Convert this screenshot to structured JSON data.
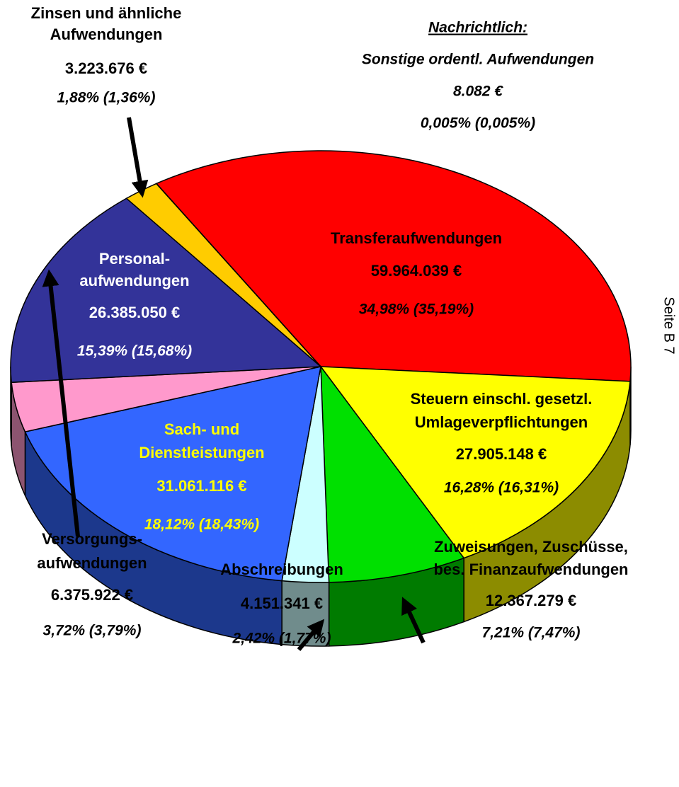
{
  "chart_data": {
    "type": "pie",
    "categories": [
      [
        "Transferaufwendungen"
      ],
      [
        "Steuern einschl. gesetzl.",
        "Umlageverpflichtungen"
      ],
      [
        "Zuweisungen, Zuschüsse,",
        "bes. Finanzaufwendungen"
      ],
      [
        "Abschreibungen"
      ],
      [
        "Sach- und",
        "Dienstleistungen"
      ],
      [
        "Versorgungs-",
        "aufwendungen"
      ],
      [
        "Personal-",
        "aufwendungen"
      ],
      [
        "Zinsen und ähnliche",
        "Aufwendungen"
      ],
      [
        "Sonstige ordentl. Aufwendungen"
      ]
    ],
    "values": [
      59964039,
      27905148,
      12367279,
      4151341,
      31061116,
      6375922,
      26385050,
      3223676,
      8082
    ],
    "value_labels": [
      "59.964.039 €",
      "27.905.148 €",
      "12.367.279 €",
      "4.151.341 €",
      "31.061.116 €",
      "6.375.922 €",
      "26.385.050 €",
      "3.223.676 €",
      "8.082 €"
    ],
    "share_labels": [
      "34,98% (35,19%)",
      "16,28% (16,31%)",
      "7,21% (7,47%)",
      "2,42% (1,77%)",
      "18,12% (18,43%)",
      "3,72% (3,79%)",
      "15,39% (15,68%)",
      "1,88% (1,36%)",
      "0,005% (0,005%)"
    ],
    "colors": [
      "#ff0000",
      "#ffff00",
      "#00e000",
      "#ccffff",
      "#3366ff",
      "#ff99cc",
      "#333399",
      "#ffcc00",
      "#808080"
    ],
    "note_title": "Nachrichtlich:",
    "page_label": "Seite B 7"
  }
}
